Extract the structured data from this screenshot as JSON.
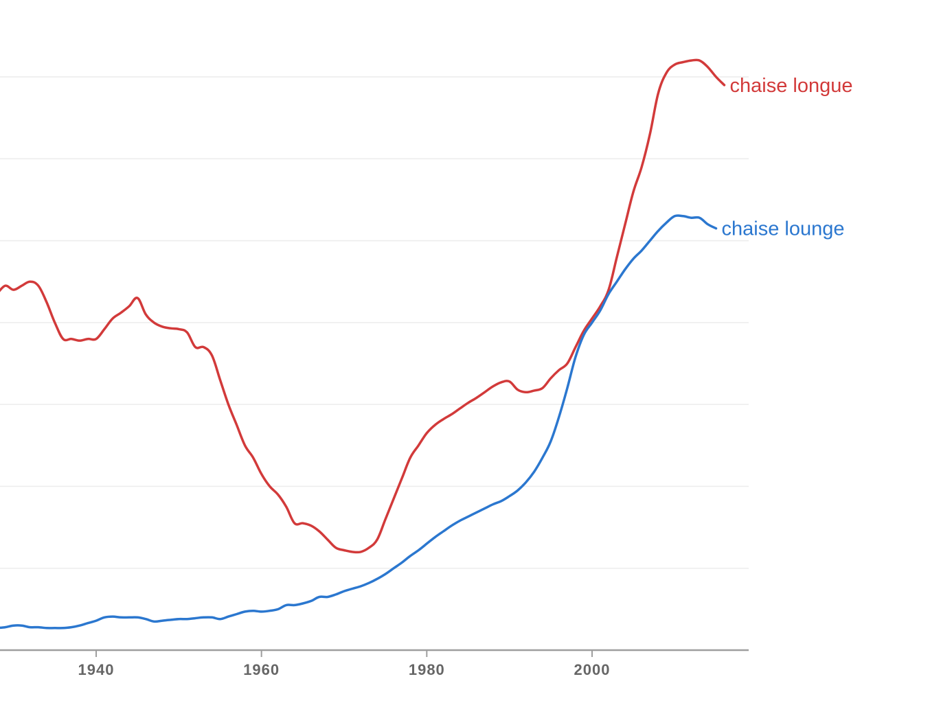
{
  "chart_data": {
    "type": "line",
    "title": "",
    "xlabel": "",
    "ylabel": "",
    "xlim": [
      1928,
      2019
    ],
    "ylim": [
      0,
      7
    ],
    "x_ticks": [
      1940,
      1960,
      1980,
      2000
    ],
    "y_gridlines": [
      1,
      2,
      3,
      4,
      5,
      6,
      7
    ],
    "grid": true,
    "legend": "inline labels at right end of each line",
    "series": [
      {
        "name": "chaise longue",
        "color": "#d23a3a",
        "points": [
          [
            1928,
            4.35
          ],
          [
            1929,
            4.45
          ],
          [
            1930,
            4.4
          ],
          [
            1931,
            4.45
          ],
          [
            1932,
            4.5
          ],
          [
            1933,
            4.45
          ],
          [
            1934,
            4.25
          ],
          [
            1935,
            4.0
          ],
          [
            1936,
            3.8
          ],
          [
            1937,
            3.8
          ],
          [
            1938,
            3.78
          ],
          [
            1939,
            3.8
          ],
          [
            1940,
            3.8
          ],
          [
            1941,
            3.92
          ],
          [
            1942,
            4.05
          ],
          [
            1943,
            4.12
          ],
          [
            1944,
            4.2
          ],
          [
            1945,
            4.3
          ],
          [
            1946,
            4.1
          ],
          [
            1947,
            4.0
          ],
          [
            1948,
            3.95
          ],
          [
            1949,
            3.93
          ],
          [
            1950,
            3.92
          ],
          [
            1951,
            3.88
          ],
          [
            1952,
            3.7
          ],
          [
            1953,
            3.7
          ],
          [
            1954,
            3.6
          ],
          [
            1955,
            3.3
          ],
          [
            1956,
            3.0
          ],
          [
            1957,
            2.75
          ],
          [
            1958,
            2.5
          ],
          [
            1959,
            2.35
          ],
          [
            1960,
            2.15
          ],
          [
            1961,
            2.0
          ],
          [
            1962,
            1.9
          ],
          [
            1963,
            1.75
          ],
          [
            1964,
            1.55
          ],
          [
            1965,
            1.55
          ],
          [
            1966,
            1.52
          ],
          [
            1967,
            1.45
          ],
          [
            1968,
            1.35
          ],
          [
            1969,
            1.25
          ],
          [
            1970,
            1.22
          ],
          [
            1971,
            1.2
          ],
          [
            1972,
            1.2
          ],
          [
            1973,
            1.25
          ],
          [
            1974,
            1.35
          ],
          [
            1975,
            1.6
          ],
          [
            1976,
            1.85
          ],
          [
            1977,
            2.1
          ],
          [
            1978,
            2.35
          ],
          [
            1979,
            2.5
          ],
          [
            1980,
            2.65
          ],
          [
            1981,
            2.75
          ],
          [
            1982,
            2.82
          ],
          [
            1983,
            2.88
          ],
          [
            1984,
            2.95
          ],
          [
            1985,
            3.02
          ],
          [
            1986,
            3.08
          ],
          [
            1987,
            3.15
          ],
          [
            1988,
            3.22
          ],
          [
            1989,
            3.27
          ],
          [
            1990,
            3.28
          ],
          [
            1991,
            3.18
          ],
          [
            1992,
            3.15
          ],
          [
            1993,
            3.17
          ],
          [
            1994,
            3.2
          ],
          [
            1995,
            3.32
          ],
          [
            1996,
            3.42
          ],
          [
            1997,
            3.5
          ],
          [
            1998,
            3.7
          ],
          [
            1999,
            3.9
          ],
          [
            2000,
            4.05
          ],
          [
            2001,
            4.2
          ],
          [
            2002,
            4.4
          ],
          [
            2003,
            4.8
          ],
          [
            2004,
            5.2
          ],
          [
            2005,
            5.6
          ],
          [
            2006,
            5.9
          ],
          [
            2007,
            6.3
          ],
          [
            2008,
            6.8
          ],
          [
            2009,
            7.05
          ],
          [
            2010,
            7.15
          ],
          [
            2011,
            7.18
          ],
          [
            2012,
            7.2
          ],
          [
            2013,
            7.2
          ],
          [
            2014,
            7.12
          ],
          [
            2015,
            7.0
          ],
          [
            2016,
            6.9
          ]
        ]
      },
      {
        "name": "chaise lounge",
        "color": "#2b77cf",
        "points": [
          [
            1928,
            0.27
          ],
          [
            1929,
            0.28
          ],
          [
            1930,
            0.3
          ],
          [
            1931,
            0.3
          ],
          [
            1932,
            0.28
          ],
          [
            1933,
            0.28
          ],
          [
            1934,
            0.27
          ],
          [
            1935,
            0.27
          ],
          [
            1936,
            0.27
          ],
          [
            1937,
            0.28
          ],
          [
            1938,
            0.3
          ],
          [
            1939,
            0.33
          ],
          [
            1940,
            0.36
          ],
          [
            1941,
            0.4
          ],
          [
            1942,
            0.41
          ],
          [
            1943,
            0.4
          ],
          [
            1944,
            0.4
          ],
          [
            1945,
            0.4
          ],
          [
            1946,
            0.38
          ],
          [
            1947,
            0.35
          ],
          [
            1948,
            0.36
          ],
          [
            1949,
            0.37
          ],
          [
            1950,
            0.38
          ],
          [
            1951,
            0.38
          ],
          [
            1952,
            0.39
          ],
          [
            1953,
            0.4
          ],
          [
            1954,
            0.4
          ],
          [
            1955,
            0.38
          ],
          [
            1956,
            0.41
          ],
          [
            1957,
            0.44
          ],
          [
            1958,
            0.47
          ],
          [
            1959,
            0.48
          ],
          [
            1960,
            0.47
          ],
          [
            1961,
            0.48
          ],
          [
            1962,
            0.5
          ],
          [
            1963,
            0.55
          ],
          [
            1964,
            0.55
          ],
          [
            1965,
            0.57
          ],
          [
            1966,
            0.6
          ],
          [
            1967,
            0.65
          ],
          [
            1968,
            0.65
          ],
          [
            1969,
            0.68
          ],
          [
            1970,
            0.72
          ],
          [
            1971,
            0.75
          ],
          [
            1972,
            0.78
          ],
          [
            1973,
            0.82
          ],
          [
            1974,
            0.87
          ],
          [
            1975,
            0.93
          ],
          [
            1976,
            1.0
          ],
          [
            1977,
            1.07
          ],
          [
            1978,
            1.15
          ],
          [
            1979,
            1.22
          ],
          [
            1980,
            1.3
          ],
          [
            1981,
            1.38
          ],
          [
            1982,
            1.45
          ],
          [
            1983,
            1.52
          ],
          [
            1984,
            1.58
          ],
          [
            1985,
            1.63
          ],
          [
            1986,
            1.68
          ],
          [
            1987,
            1.73
          ],
          [
            1988,
            1.78
          ],
          [
            1989,
            1.82
          ],
          [
            1990,
            1.88
          ],
          [
            1991,
            1.95
          ],
          [
            1992,
            2.05
          ],
          [
            1993,
            2.18
          ],
          [
            1994,
            2.35
          ],
          [
            1995,
            2.55
          ],
          [
            1996,
            2.85
          ],
          [
            1997,
            3.2
          ],
          [
            1998,
            3.58
          ],
          [
            1999,
            3.85
          ],
          [
            2000,
            4.0
          ],
          [
            2001,
            4.15
          ],
          [
            2002,
            4.35
          ],
          [
            2003,
            4.5
          ],
          [
            2004,
            4.65
          ],
          [
            2005,
            4.78
          ],
          [
            2006,
            4.88
          ],
          [
            2007,
            5.0
          ],
          [
            2008,
            5.12
          ],
          [
            2009,
            5.22
          ],
          [
            2010,
            5.3
          ],
          [
            2011,
            5.3
          ],
          [
            2012,
            5.28
          ],
          [
            2013,
            5.28
          ],
          [
            2014,
            5.2
          ],
          [
            2015,
            5.15
          ]
        ]
      }
    ]
  }
}
